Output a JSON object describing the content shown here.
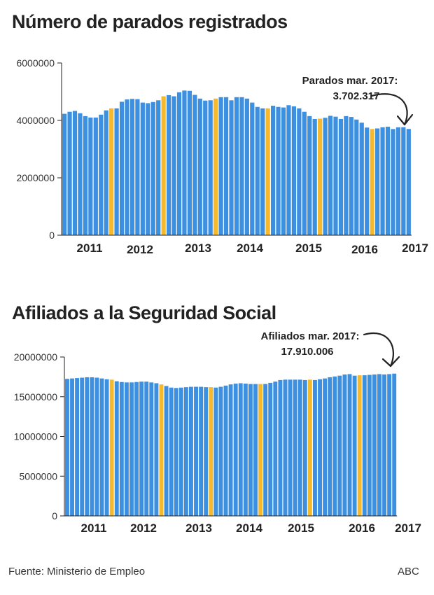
{
  "footer": {
    "source": "Fuente: Ministerio de Empleo",
    "brand": "ABC"
  },
  "colors": {
    "bar": "#3d8fe0",
    "highlight": "#f6b92c",
    "axis": "#222222",
    "annotation": "#222222"
  },
  "chart_data": [
    {
      "type": "bar",
      "title": "Número de parados registrados",
      "ylim": [
        0,
        6000000
      ],
      "yticks": [
        0,
        2000000,
        4000000,
        6000000
      ],
      "ytick_labels": [
        "0",
        "2000000",
        "4000000",
        "6000000"
      ],
      "year_labels": [
        "2011",
        "2012",
        "2013",
        "2014",
        "2015",
        "2016",
        "2017"
      ],
      "highlight_indices": [
        9,
        19,
        29,
        39,
        49,
        59,
        69
      ],
      "annotation": {
        "line1": "Parados mar. 2017:",
        "line2": "3.702.317"
      },
      "values": [
        4230000,
        4300000,
        4330000,
        4250000,
        4150000,
        4100000,
        4100000,
        4200000,
        4350000,
        4420000,
        4420000,
        4650000,
        4730000,
        4750000,
        4740000,
        4620000,
        4600000,
        4640000,
        4700000,
        4840000,
        4880000,
        4840000,
        4980000,
        5040000,
        5030000,
        4890000,
        4760000,
        4690000,
        4700000,
        4760000,
        4810000,
        4810000,
        4700000,
        4810000,
        4810000,
        4760000,
        4620000,
        4470000,
        4420000,
        4420000,
        4510000,
        4470000,
        4450000,
        4530000,
        4490000,
        4420000,
        4300000,
        4150000,
        4050000,
        4060000,
        4090000,
        4160000,
        4130000,
        4050000,
        4150000,
        4120000,
        4030000,
        3920000,
        3750000,
        3700000,
        3720000,
        3760000,
        3780000,
        3700000,
        3760000,
        3762000,
        3702317
      ]
    },
    {
      "type": "bar",
      "title": "Afiliados a la Seguridad Social",
      "ylim": [
        0,
        20000000
      ],
      "yticks": [
        0,
        5000000,
        10000000,
        15000000,
        20000000
      ],
      "ytick_labels": [
        "0",
        "5000000",
        "10000000",
        "15000000",
        "20000000"
      ],
      "year_labels": [
        "2011",
        "2012",
        "2013",
        "2014",
        "2015",
        "2016",
        "2017"
      ],
      "highlight_indices": [
        9,
        19,
        29,
        39,
        49,
        59,
        69
      ],
      "annotation": {
        "line1": "Afiliados mar. 2017:",
        "line2": "17.910.006"
      },
      "values": [
        17250000,
        17300000,
        17350000,
        17400000,
        17450000,
        17450000,
        17400000,
        17300000,
        17200000,
        17150000,
        16950000,
        16850000,
        16800000,
        16800000,
        16850000,
        16900000,
        16900000,
        16800000,
        16700000,
        16550000,
        16350000,
        16150000,
        16100000,
        16150000,
        16200000,
        16250000,
        16250000,
        16250000,
        16200000,
        16200000,
        16150000,
        16250000,
        16400000,
        16550000,
        16650000,
        16700000,
        16650000,
        16600000,
        16600000,
        16600000,
        16600000,
        16750000,
        16900000,
        17100000,
        17150000,
        17150000,
        17150000,
        17150000,
        17100000,
        17150000,
        17100000,
        17200000,
        17300000,
        17450000,
        17550000,
        17650000,
        17800000,
        17850000,
        17650000,
        17700000,
        17700000,
        17750000,
        17800000,
        17850000,
        17800000,
        17850000,
        17910006
      ]
    }
  ]
}
